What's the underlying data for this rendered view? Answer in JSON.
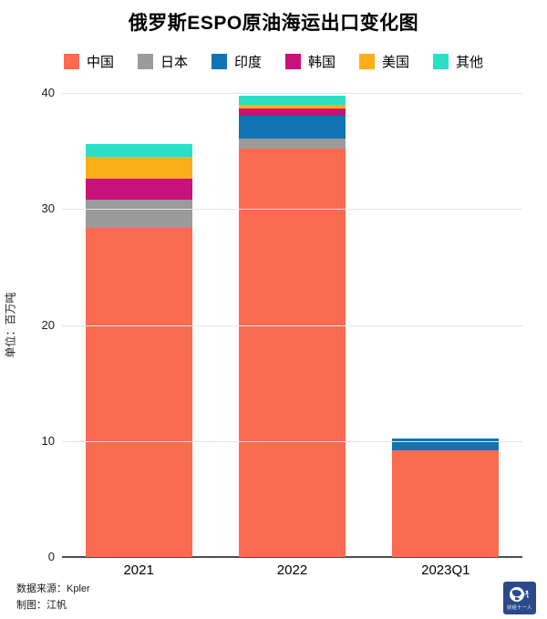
{
  "title": "俄罗斯ESPO原油海运出口变化图",
  "ylabel": "单位：百万吨",
  "footer": {
    "source": "数据来源：Kpler",
    "credit": "制图：江帆",
    "logo_text": "财经十一人"
  },
  "colors": {
    "china": "#fa6b50",
    "japan": "#9b9b9b",
    "india": "#1173b4",
    "korea": "#c9117b",
    "usa": "#fbae17",
    "other": "#2bdfc6",
    "grid": "#e4e4e4",
    "axis": "#4d4d4d",
    "logo_navy": "#2b4a8c"
  },
  "chart_data": {
    "type": "bar",
    "stacked": true,
    "categories": [
      "2021",
      "2022",
      "2023Q1"
    ],
    "series": [
      {
        "name": "中国",
        "color": "#fa6b50",
        "values": [
          28.4,
          35.2,
          9.2
        ]
      },
      {
        "name": "日本",
        "color": "#9b9b9b",
        "values": [
          2.4,
          0.9,
          0
        ]
      },
      {
        "name": "印度",
        "color": "#1173b4",
        "values": [
          0,
          1.9,
          1.0
        ]
      },
      {
        "name": "韩国",
        "color": "#c9117b",
        "values": [
          1.8,
          0.7,
          0
        ]
      },
      {
        "name": "美国",
        "color": "#fbae17",
        "values": [
          1.9,
          0.3,
          0
        ]
      },
      {
        "name": "其他",
        "color": "#2bdfc6",
        "values": [
          1.1,
          0.8,
          0
        ]
      }
    ],
    "totals": [
      35.6,
      39.8,
      10.2
    ],
    "title": "俄罗斯ESPO原油海运出口变化图",
    "xlabel": "",
    "ylabel": "单位：百万吨",
    "ylim": [
      0,
      40
    ],
    "yticks": [
      0,
      10,
      20,
      30,
      40
    ],
    "grid": true,
    "legend_position": "top"
  }
}
